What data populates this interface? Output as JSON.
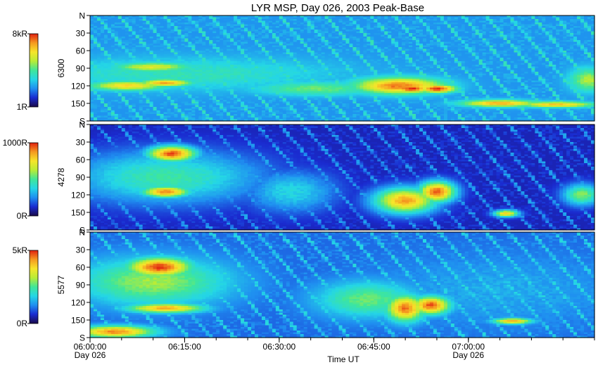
{
  "chart_data": {
    "type": "heatmap",
    "title": "LYR MSP, Day 026, 2003 Peak-Base",
    "xlabel": "Time UT",
    "x_range": [
      "06:00:00",
      "07:20:00"
    ],
    "x_ticks": [
      {
        "time": "06:00:00",
        "day": "Day 026"
      },
      {
        "time": "06:15:00",
        "day": ""
      },
      {
        "time": "06:30:00",
        "day": ""
      },
      {
        "time": "06:45:00",
        "day": ""
      },
      {
        "time": "07:00:00",
        "day": "Day 026"
      }
    ],
    "y_range": [
      0,
      180
    ],
    "y_ticks": [
      "N",
      "30",
      "60",
      "90",
      "120",
      "150",
      "S"
    ],
    "colormap": [
      "#1a0a4a",
      "#1a2bd0",
      "#1f8ef0",
      "#24d6e6",
      "#3fe69a",
      "#b8ec36",
      "#f6e52a",
      "#f59a20",
      "#e02010"
    ],
    "panels": [
      {
        "ylabel": "6300",
        "colorbar_min": "1R",
        "colorbar_max": "8kR",
        "background": 0.26,
        "features": [
          {
            "t": 15,
            "a": 100,
            "dt": 25,
            "da": 28,
            "v": 0.45
          },
          {
            "t": 6,
            "a": 120,
            "dt": 6,
            "da": 8,
            "v": 0.78
          },
          {
            "t": 12,
            "a": 115,
            "dt": 4,
            "da": 6,
            "v": 0.88
          },
          {
            "t": 10,
            "a": 88,
            "dt": 6,
            "da": 8,
            "v": 0.7
          },
          {
            "t": 36,
            "a": 125,
            "dt": 10,
            "da": 12,
            "v": 0.55
          },
          {
            "t": 49,
            "a": 120,
            "dt": 7,
            "da": 14,
            "v": 0.92
          },
          {
            "t": 51,
            "a": 125,
            "dt": 3,
            "da": 7,
            "v": 1.0
          },
          {
            "t": 55,
            "a": 125,
            "dt": 3,
            "da": 7,
            "v": 1.0
          },
          {
            "t": 65,
            "a": 150,
            "dt": 6,
            "da": 6,
            "v": 0.86
          },
          {
            "t": 74,
            "a": 152,
            "dt": 6,
            "da": 5,
            "v": 0.82
          },
          {
            "t": 79,
            "a": 110,
            "dt": 3,
            "da": 20,
            "v": 0.62
          }
        ]
      },
      {
        "ylabel": "4278",
        "colorbar_min": "0R",
        "colorbar_max": "1000R",
        "background": 0.1,
        "features": [
          {
            "t": 12,
            "a": 90,
            "dt": 15,
            "da": 45,
            "v": 0.48
          },
          {
            "t": 13,
            "a": 50,
            "dt": 4,
            "da": 14,
            "v": 0.95
          },
          {
            "t": 12,
            "a": 115,
            "dt": 4,
            "da": 10,
            "v": 0.9
          },
          {
            "t": 32,
            "a": 115,
            "dt": 7,
            "da": 35,
            "v": 0.38
          },
          {
            "t": 50,
            "a": 130,
            "dt": 5,
            "da": 22,
            "v": 0.86
          },
          {
            "t": 55,
            "a": 115,
            "dt": 3,
            "da": 18,
            "v": 0.95
          },
          {
            "t": 66,
            "a": 152,
            "dt": 2,
            "da": 6,
            "v": 0.8
          },
          {
            "t": 78,
            "a": 120,
            "dt": 3,
            "da": 18,
            "v": 0.58
          }
        ]
      },
      {
        "ylabel": "5577",
        "colorbar_min": "0R",
        "colorbar_max": "5kR",
        "background": 0.2,
        "features": [
          {
            "t": 10,
            "a": 85,
            "dt": 12,
            "da": 40,
            "v": 0.6
          },
          {
            "t": 11,
            "a": 60,
            "dt": 5,
            "da": 16,
            "v": 0.98
          },
          {
            "t": 4,
            "a": 170,
            "dt": 6,
            "da": 10,
            "v": 0.9
          },
          {
            "t": 12,
            "a": 130,
            "dt": 6,
            "da": 8,
            "v": 0.85
          },
          {
            "t": 44,
            "a": 115,
            "dt": 8,
            "da": 30,
            "v": 0.55
          },
          {
            "t": 50,
            "a": 130,
            "dt": 3,
            "da": 22,
            "v": 0.92
          },
          {
            "t": 54,
            "a": 125,
            "dt": 3,
            "da": 15,
            "v": 0.95
          },
          {
            "t": 67,
            "a": 152,
            "dt": 3,
            "da": 5,
            "v": 0.85
          },
          {
            "t": 65,
            "a": 100,
            "dt": 20,
            "da": 60,
            "v": 0.3
          }
        ]
      }
    ]
  }
}
